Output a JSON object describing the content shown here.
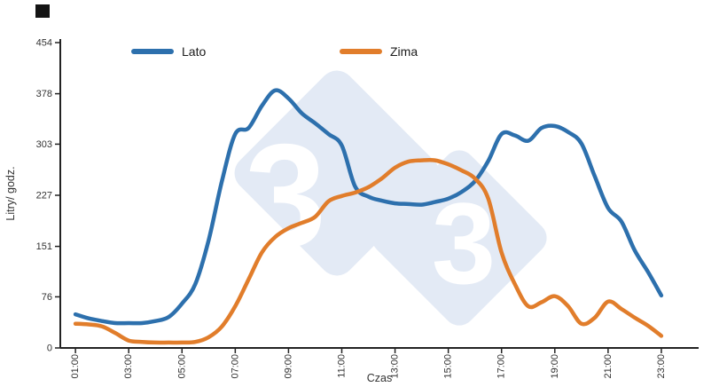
{
  "legend": {
    "lato": {
      "label": "Lato"
    },
    "zima": {
      "label": "Zima"
    }
  },
  "watermark": {
    "digit": "3",
    "diamond_color": "#e3eaf5",
    "digit_color": "#ffffff"
  },
  "chart_data": {
    "type": "line",
    "title": "",
    "xlabel": "Czas",
    "ylabel": "Litry/ godz.",
    "x_tick_labels": [
      "01:00",
      "03:00",
      "05:00",
      "07:00",
      "09:00",
      "11:00",
      "13:00",
      "15:00",
      "17:00",
      "19:00",
      "21:00",
      "23:00"
    ],
    "x_tick_hours": [
      1,
      3,
      5,
      7,
      9,
      11,
      13,
      15,
      17,
      19,
      21,
      23
    ],
    "y_ticks": [
      0,
      76,
      151,
      227,
      303,
      378,
      454
    ],
    "xlim": [
      0.43,
      24.4
    ],
    "ylim": [
      0,
      454
    ],
    "legend_position": "top",
    "grid": false,
    "series": [
      {
        "name": "Lato",
        "color": "#2d70ad",
        "points": [
          [
            1,
            50
          ],
          [
            1.5,
            44
          ],
          [
            2,
            40
          ],
          [
            2.5,
            37
          ],
          [
            3,
            37
          ],
          [
            3.5,
            37
          ],
          [
            4,
            40
          ],
          [
            4.5,
            46
          ],
          [
            5,
            66
          ],
          [
            5.5,
            95
          ],
          [
            6,
            160
          ],
          [
            6.5,
            248
          ],
          [
            7,
            318
          ],
          [
            7.5,
            327
          ],
          [
            8,
            360
          ],
          [
            8.5,
            383
          ],
          [
            9,
            371
          ],
          [
            9.5,
            349
          ],
          [
            10,
            334
          ],
          [
            10.5,
            318
          ],
          [
            11,
            301
          ],
          [
            11.5,
            240
          ],
          [
            12,
            225
          ],
          [
            12.5,
            219
          ],
          [
            13,
            215
          ],
          [
            13.5,
            214
          ],
          [
            14,
            213
          ],
          [
            14.5,
            217
          ],
          [
            15,
            222
          ],
          [
            15.5,
            232
          ],
          [
            16,
            248
          ],
          [
            16.5,
            278
          ],
          [
            17,
            318
          ],
          [
            17.5,
            316
          ],
          [
            18,
            308
          ],
          [
            18.5,
            327
          ],
          [
            19,
            330
          ],
          [
            19.5,
            321
          ],
          [
            20,
            304
          ],
          [
            20.5,
            255
          ],
          [
            21,
            208
          ],
          [
            21.5,
            188
          ],
          [
            22,
            145
          ],
          [
            22.5,
            113
          ],
          [
            23,
            78
          ]
        ]
      },
      {
        "name": "Zima",
        "color": "#e17d2b",
        "points": [
          [
            1,
            36
          ],
          [
            1.5,
            35
          ],
          [
            2,
            32
          ],
          [
            2.5,
            22
          ],
          [
            3,
            11
          ],
          [
            3.5,
            9
          ],
          [
            4,
            8
          ],
          [
            4.5,
            8
          ],
          [
            5,
            8
          ],
          [
            5.5,
            9
          ],
          [
            6,
            16
          ],
          [
            6.5,
            32
          ],
          [
            7,
            62
          ],
          [
            7.5,
            102
          ],
          [
            8,
            142
          ],
          [
            8.5,
            165
          ],
          [
            9,
            178
          ],
          [
            9.5,
            186
          ],
          [
            10,
            195
          ],
          [
            10.5,
            218
          ],
          [
            11,
            226
          ],
          [
            11.5,
            231
          ],
          [
            12,
            239
          ],
          [
            12.5,
            252
          ],
          [
            13,
            268
          ],
          [
            13.5,
            277
          ],
          [
            14,
            279
          ],
          [
            14.5,
            279
          ],
          [
            15,
            273
          ],
          [
            15.5,
            264
          ],
          [
            16,
            252
          ],
          [
            16.5,
            222
          ],
          [
            17,
            142
          ],
          [
            17.5,
            95
          ],
          [
            18,
            62
          ],
          [
            18.5,
            68
          ],
          [
            19,
            77
          ],
          [
            19.5,
            62
          ],
          [
            20,
            36
          ],
          [
            20.5,
            45
          ],
          [
            21,
            69
          ],
          [
            21.5,
            58
          ],
          [
            22,
            45
          ],
          [
            22.5,
            33
          ],
          [
            23,
            18
          ]
        ]
      }
    ]
  }
}
